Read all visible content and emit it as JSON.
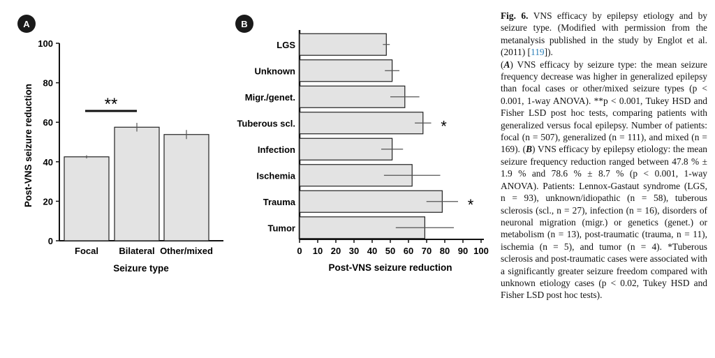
{
  "panel_a": {
    "badge": "A",
    "significance": "**"
  },
  "panel_b": {
    "badge": "B"
  },
  "chart_data": [
    {
      "type": "bar",
      "categories": [
        "Focal",
        "Bilateral",
        "Other/mixed"
      ],
      "values": [
        42.5,
        57.5,
        53.8
      ],
      "errors": [
        0.8,
        2.2,
        2.3
      ],
      "xlabel": "Seizure type",
      "ylabel": "Post-VNS seizure reduction",
      "ylim": [
        0,
        100
      ],
      "yticks": [
        "0",
        "20",
        "40",
        "60",
        "80",
        "100"
      ],
      "bar_color": "#e3e3e3",
      "annotation": "**"
    },
    {
      "type": "bar",
      "orientation": "horizontal",
      "categories": [
        "LGS",
        "Unknown",
        "Migr./genet.",
        "Tuberous scl.",
        "Infection",
        "Ischemia",
        "Trauma",
        "Tumor"
      ],
      "values": [
        47.8,
        51.0,
        58.0,
        68.0,
        51.0,
        62.0,
        78.6,
        69.0
      ],
      "errors": [
        1.9,
        4.0,
        8.0,
        4.5,
        6.0,
        15.5,
        8.7,
        16.0
      ],
      "significance": [
        "",
        "",
        "",
        "*",
        "",
        "",
        "*",
        ""
      ],
      "xlabel": "Post-VNS seizure reduction",
      "xlim": [
        0,
        100
      ],
      "xticks": [
        "0",
        "10",
        "20",
        "30",
        "40",
        "50",
        "60",
        "70",
        "80",
        "90",
        "100"
      ],
      "bar_color": "#e3e3e3"
    }
  ],
  "caption": {
    "fig_label": "Fig. 6.",
    "title_text": " VNS efficacy by epilepsy etiology and by seizure type. (Modified with permission from the metanalysis published in the study by Englot et al. (2011) [",
    "ref": "119",
    "title_end": "]).",
    "a_label": "A",
    "a_text": ") VNS efficacy by seizure type: the mean seizure frequency decrease was higher in generalized epilepsy than focal cases or other/mixed seizure types (p < 0.001, 1-way ANOVA). **p < 0.001, Tukey HSD and Fisher LSD post hoc tests, comparing patients with generalized versus focal epilepsy. Number of patients: focal (n = 507), generalized (n = 111), and mixed (n = 169). (",
    "b_label": "B",
    "b_text": ") VNS efficacy by epilepsy etiology: the mean seizure frequency reduction ranged between 47.8 % ± 1.9 % and 78.6 % ± 8.7 % (p < 0.001, 1-way ANOVA). Patients: Lennox-Gastaut syndrome (LGS, n = 93), unknown/idiopathic (n = 58), tuberous sclerosis (scl., n = 27), infection (n = 16), disorders of neuronal migration (migr.) or genetics (genet.) or metabolism (n = 13), post-traumatic (trauma, n = 11), ischemia (n = 5), and tumor (n = 4). *Tuberous sclerosis and post-traumatic cases were associated with a significantly greater seizure freedom compared with unknown etiology cases (p < 0.02, Tukey HSD and Fisher LSD post hoc tests)."
  }
}
